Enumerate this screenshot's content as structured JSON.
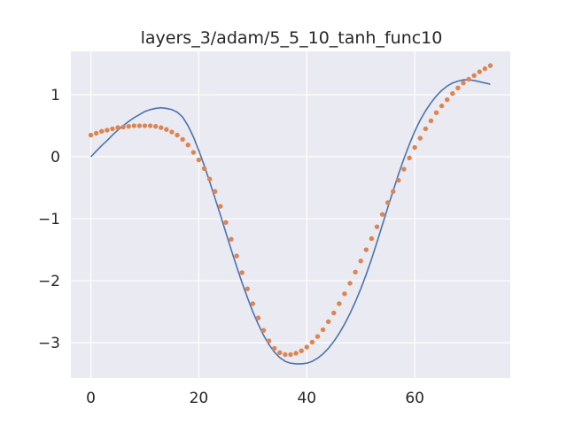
{
  "chart_data": {
    "type": "line",
    "title": "layers_3/adam/5_5_10_tanh_func10",
    "xlabel": "",
    "ylabel": "",
    "xlim": [
      -3.7,
      77.7
    ],
    "ylim": [
      -3.57,
      1.7
    ],
    "grid": true,
    "x_ticks": [
      0,
      20,
      40,
      60
    ],
    "y_ticks": [
      1,
      0,
      -1,
      -2,
      -3
    ],
    "x_tick_labels": [
      "0",
      "20",
      "40",
      "60"
    ],
    "y_tick_labels": [
      "1",
      "0",
      "−1",
      "−2",
      "−3"
    ],
    "colors": {
      "background": "#EAEAF2",
      "line": "#4C72B0",
      "points": "#DD8452"
    },
    "series": [
      {
        "style": "line",
        "x": [
          0,
          1,
          2,
          3,
          4,
          5,
          6,
          7,
          8,
          9,
          10,
          11,
          12,
          13,
          14,
          15,
          16,
          17,
          18,
          19,
          20,
          21,
          22,
          23,
          24,
          25,
          26,
          27,
          28,
          29,
          30,
          31,
          32,
          33,
          34,
          35,
          36,
          37,
          38,
          39,
          40,
          41,
          42,
          43,
          44,
          45,
          46,
          47,
          48,
          49,
          50,
          51,
          52,
          53,
          54,
          55,
          56,
          57,
          58,
          59,
          60,
          61,
          62,
          63,
          64,
          65,
          66,
          67,
          68,
          69,
          70,
          71,
          72,
          73,
          74
        ],
        "y": [
          0.0,
          0.09,
          0.18,
          0.26,
          0.35,
          0.43,
          0.5,
          0.57,
          0.63,
          0.68,
          0.73,
          0.76,
          0.78,
          0.79,
          0.78,
          0.76,
          0.72,
          0.64,
          0.5,
          0.32,
          0.1,
          -0.14,
          -0.4,
          -0.67,
          -0.94,
          -1.22,
          -1.5,
          -1.77,
          -2.03,
          -2.27,
          -2.5,
          -2.7,
          -2.88,
          -3.03,
          -3.15,
          -3.24,
          -3.3,
          -3.33,
          -3.34,
          -3.34,
          -3.33,
          -3.3,
          -3.25,
          -3.18,
          -3.09,
          -2.98,
          -2.85,
          -2.7,
          -2.53,
          -2.34,
          -2.13,
          -1.9,
          -1.65,
          -1.38,
          -1.1,
          -0.82,
          -0.55,
          -0.28,
          -0.03,
          0.2,
          0.41,
          0.59,
          0.74,
          0.87,
          0.98,
          1.07,
          1.14,
          1.19,
          1.22,
          1.24,
          1.24,
          1.23,
          1.21,
          1.19,
          1.17
        ]
      },
      {
        "style": "scatter",
        "x": [
          0,
          1,
          2,
          3,
          4,
          5,
          6,
          7,
          8,
          9,
          10,
          11,
          12,
          13,
          14,
          15,
          16,
          17,
          18,
          19,
          20,
          21,
          22,
          23,
          24,
          25,
          26,
          27,
          28,
          29,
          30,
          31,
          32,
          33,
          34,
          35,
          36,
          37,
          38,
          39,
          40,
          41,
          42,
          43,
          44,
          45,
          46,
          47,
          48,
          49,
          50,
          51,
          52,
          53,
          54,
          55,
          56,
          57,
          58,
          59,
          60,
          61,
          62,
          63,
          64,
          65,
          66,
          67,
          68,
          69,
          70,
          71,
          72,
          73,
          74
        ],
        "y": [
          0.35,
          0.38,
          0.41,
          0.43,
          0.45,
          0.47,
          0.48,
          0.49,
          0.5,
          0.5,
          0.5,
          0.5,
          0.49,
          0.47,
          0.44,
          0.4,
          0.35,
          0.28,
          0.19,
          0.07,
          -0.05,
          -0.19,
          -0.36,
          -0.56,
          -0.8,
          -1.06,
          -1.33,
          -1.6,
          -1.87,
          -2.13,
          -2.37,
          -2.6,
          -2.8,
          -2.97,
          -3.09,
          -3.16,
          -3.19,
          -3.19,
          -3.17,
          -3.13,
          -3.07,
          -2.99,
          -2.9,
          -2.79,
          -2.66,
          -2.52,
          -2.37,
          -2.21,
          -2.04,
          -1.86,
          -1.68,
          -1.5,
          -1.32,
          -1.13,
          -0.93,
          -0.74,
          -0.56,
          -0.38,
          -0.2,
          -0.02,
          0.15,
          0.3,
          0.45,
          0.58,
          0.71,
          0.82,
          0.92,
          1.02,
          1.11,
          1.19,
          1.25,
          1.31,
          1.37,
          1.42,
          1.47
        ]
      }
    ]
  }
}
